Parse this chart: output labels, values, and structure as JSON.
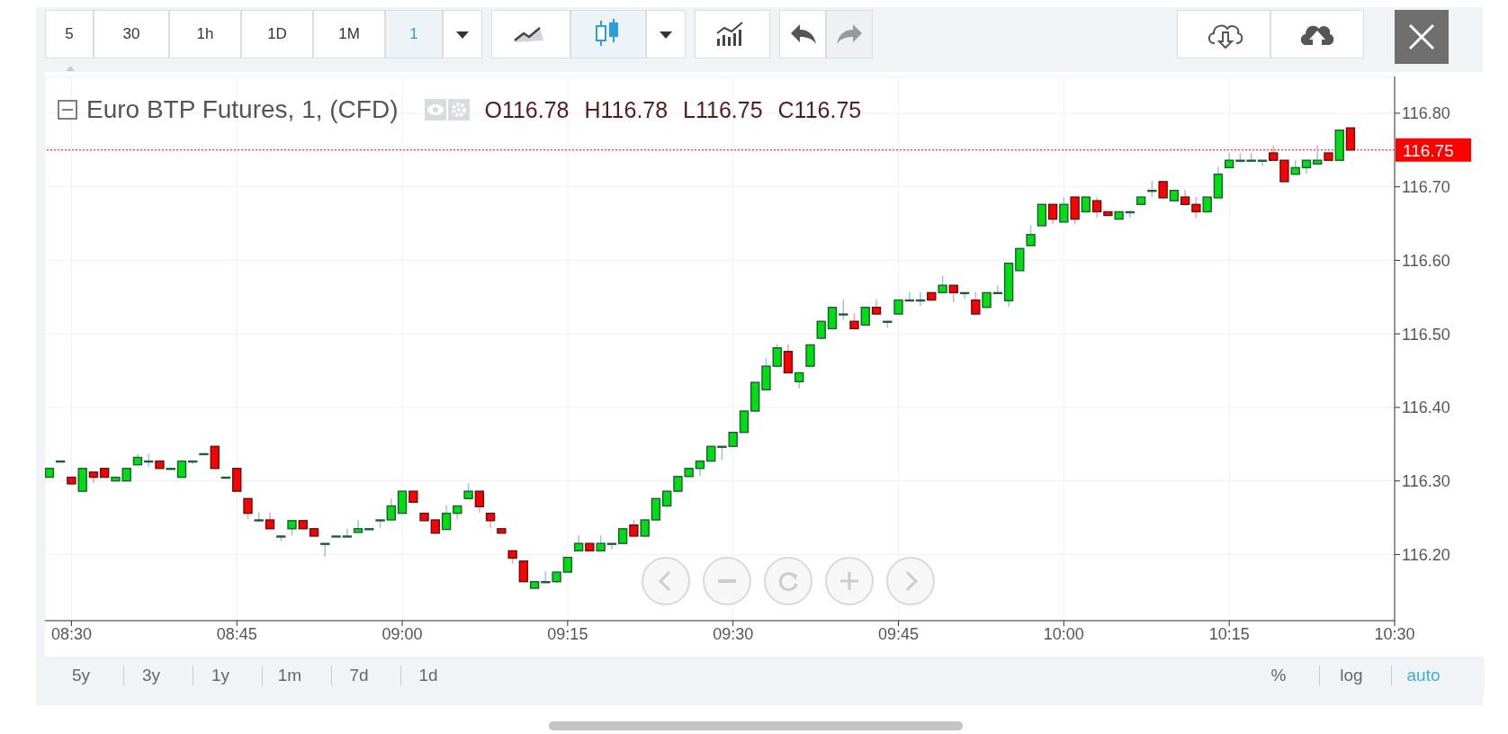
{
  "chart_data": {
    "type": "candlestick",
    "title": "Euro BTP Futures, 1, (CFD)",
    "annotations": [
      "O116.78 H116.78 L116.75 C116.75",
      "5",
      "30",
      "1h",
      "1D",
      "1M",
      "1",
      "5y",
      "3y",
      "1y",
      "1m",
      "7d",
      "1d",
      "%",
      "log",
      "auto"
    ],
    "x": [
      8.4667,
      8.4833,
      8.5,
      8.5167,
      8.5333,
      8.55,
      8.5667,
      8.5833,
      8.6,
      8.6167,
      8.6333,
      8.65,
      8.6667,
      8.6833,
      8.7,
      8.7167,
      8.7333,
      8.75,
      8.7667,
      8.7833,
      8.8,
      8.8167,
      8.8333,
      8.85,
      8.8667,
      8.8833,
      8.9,
      8.9167,
      8.9333,
      8.95,
      8.9667,
      8.9833,
      9.0,
      9.0167,
      9.0333,
      9.05,
      9.0667,
      9.0833,
      9.1,
      9.1167,
      9.1333,
      9.15,
      9.1667,
      9.1833,
      9.2,
      9.2167,
      9.2333,
      9.25,
      9.2667,
      9.2833,
      9.3,
      9.3167,
      9.3333,
      9.35,
      9.3667,
      9.3833,
      9.4,
      9.4167,
      9.4333,
      9.45,
      9.4667,
      9.4833,
      9.5,
      9.5167,
      9.5333,
      9.55,
      9.5667,
      9.5833,
      9.6,
      9.6167,
      9.6333,
      9.65,
      9.6667,
      9.6833,
      9.7,
      9.7167,
      9.7333,
      9.75,
      9.7667,
      9.7833,
      9.8,
      9.8167,
      9.8333,
      9.85,
      9.8667,
      9.8833,
      9.9,
      9.9167,
      9.9333,
      9.95,
      9.9667,
      9.9833,
      10.0,
      10.0167,
      10.0333,
      10.05,
      10.0667,
      10.0833,
      10.1,
      10.1167,
      10.1333,
      10.15,
      10.1667,
      10.1833,
      10.2,
      10.2167,
      10.2333,
      10.25,
      10.2667,
      10.2833,
      10.3,
      10.3167,
      10.3333,
      10.35,
      10.3667,
      10.3833,
      10.4,
      10.4167,
      10.4333
    ],
    "ohlc": [
      [
        116.305,
        116.317,
        116.305,
        116.317
      ],
      [
        116.327,
        116.327,
        116.327,
        116.327
      ],
      [
        116.305,
        116.305,
        116.296,
        116.296
      ],
      [
        116.286,
        116.317,
        116.286,
        116.317
      ],
      [
        116.312,
        116.312,
        116.297,
        116.305
      ],
      [
        116.317,
        116.317,
        116.305,
        116.305
      ],
      [
        116.3,
        116.305,
        116.3,
        116.305
      ],
      [
        116.3,
        116.317,
        116.3,
        116.317
      ],
      [
        116.322,
        116.337,
        116.322,
        116.332
      ],
      [
        116.327,
        116.337,
        116.319,
        116.327
      ],
      [
        116.327,
        116.327,
        116.317,
        116.317
      ],
      [
        116.317,
        116.317,
        116.317,
        116.317
      ],
      [
        116.305,
        116.327,
        116.305,
        116.327
      ],
      [
        116.327,
        116.327,
        116.323,
        116.327
      ],
      [
        116.337,
        116.337,
        116.337,
        116.337
      ],
      [
        116.347,
        116.347,
        116.317,
        116.317
      ],
      [
        116.305,
        116.305,
        116.305,
        116.305
      ],
      [
        116.317,
        116.317,
        116.286,
        116.286
      ],
      [
        116.276,
        116.276,
        116.248,
        116.256
      ],
      [
        116.247,
        116.257,
        116.244,
        116.247
      ],
      [
        116.247,
        116.257,
        116.235,
        116.235
      ],
      [
        116.225,
        116.225,
        116.218,
        116.225
      ],
      [
        116.235,
        116.246,
        116.226,
        116.246
      ],
      [
        116.246,
        116.246,
        116.235,
        116.235
      ],
      [
        116.235,
        116.235,
        116.225,
        116.225
      ],
      [
        116.215,
        116.215,
        116.197,
        116.215
      ],
      [
        116.225,
        116.225,
        116.225,
        116.225
      ],
      [
        116.225,
        116.235,
        116.225,
        116.225
      ],
      [
        116.23,
        116.247,
        116.23,
        116.235
      ],
      [
        116.235,
        116.235,
        116.235,
        116.235
      ],
      [
        116.247,
        116.247,
        116.236,
        116.247
      ],
      [
        116.247,
        116.276,
        116.247,
        116.266
      ],
      [
        116.256,
        116.286,
        116.256,
        116.286
      ],
      [
        116.286,
        116.286,
        116.271,
        116.271
      ],
      [
        116.256,
        116.256,
        116.246,
        116.246
      ],
      [
        116.247,
        116.247,
        116.229,
        116.229
      ],
      [
        116.234,
        116.267,
        116.234,
        116.256
      ],
      [
        116.256,
        116.266,
        116.248,
        116.266
      ],
      [
        116.276,
        116.297,
        116.276,
        116.286
      ],
      [
        116.286,
        116.286,
        116.257,
        116.265
      ],
      [
        116.256,
        116.256,
        116.236,
        116.246
      ],
      [
        116.235,
        116.235,
        116.229,
        116.229
      ],
      [
        116.205,
        116.205,
        116.187,
        116.195
      ],
      [
        116.191,
        116.191,
        116.163,
        116.163
      ],
      [
        116.154,
        116.163,
        116.154,
        116.163
      ],
      [
        116.163,
        116.177,
        116.161,
        116.163
      ],
      [
        116.163,
        116.176,
        116.161,
        116.176
      ],
      [
        116.176,
        116.196,
        116.176,
        116.196
      ],
      [
        116.205,
        116.226,
        116.205,
        116.215
      ],
      [
        116.215,
        116.215,
        116.205,
        116.205
      ],
      [
        116.205,
        116.226,
        116.205,
        116.215
      ],
      [
        116.215,
        116.215,
        116.207,
        116.215
      ],
      [
        116.215,
        116.235,
        116.215,
        116.235
      ],
      [
        116.24,
        116.247,
        116.225,
        116.225
      ],
      [
        116.225,
        116.247,
        116.225,
        116.247
      ],
      [
        116.247,
        116.276,
        116.247,
        116.276
      ],
      [
        116.266,
        116.286,
        116.266,
        116.286
      ],
      [
        116.286,
        116.306,
        116.286,
        116.306
      ],
      [
        116.306,
        116.317,
        116.306,
        116.317
      ],
      [
        116.317,
        116.327,
        116.307,
        116.327
      ],
      [
        116.327,
        116.347,
        116.327,
        116.347
      ],
      [
        116.347,
        116.347,
        116.329,
        116.347
      ],
      [
        116.347,
        116.366,
        116.347,
        116.366
      ],
      [
        116.366,
        116.395,
        116.366,
        116.395
      ],
      [
        116.395,
        116.434,
        116.395,
        116.434
      ],
      [
        116.424,
        116.467,
        116.424,
        116.456
      ],
      [
        116.456,
        116.486,
        116.456,
        116.481
      ],
      [
        116.476,
        116.486,
        116.447,
        116.447
      ],
      [
        116.435,
        116.447,
        116.426,
        116.447
      ],
      [
        116.456,
        116.485,
        116.456,
        116.485
      ],
      [
        116.494,
        116.517,
        116.494,
        116.517
      ],
      [
        116.507,
        116.536,
        116.507,
        116.536
      ],
      [
        116.527,
        116.547,
        116.519,
        116.527
      ],
      [
        116.517,
        116.528,
        116.507,
        116.507
      ],
      [
        116.512,
        116.536,
        116.512,
        116.536
      ],
      [
        116.536,
        116.547,
        116.527,
        116.527
      ],
      [
        116.517,
        116.517,
        116.508,
        116.517
      ],
      [
        116.527,
        116.546,
        116.527,
        116.546
      ],
      [
        116.546,
        116.557,
        116.546,
        116.546
      ],
      [
        116.546,
        116.557,
        116.538,
        116.546
      ],
      [
        116.556,
        116.556,
        116.546,
        116.546
      ],
      [
        116.556,
        116.579,
        116.556,
        116.566
      ],
      [
        116.566,
        116.566,
        116.543,
        116.556
      ],
      [
        116.556,
        116.556,
        116.548,
        116.556
      ],
      [
        116.546,
        116.557,
        116.527,
        116.527
      ],
      [
        116.536,
        116.556,
        116.536,
        116.556
      ],
      [
        116.556,
        116.566,
        116.556,
        116.556
      ],
      [
        116.545,
        116.596,
        116.537,
        116.596
      ],
      [
        116.586,
        116.616,
        116.586,
        116.616
      ],
      [
        116.62,
        116.648,
        116.62,
        116.635
      ],
      [
        116.647,
        116.676,
        116.647,
        116.676
      ],
      [
        116.676,
        116.676,
        116.649,
        116.656
      ],
      [
        116.652,
        116.686,
        116.652,
        116.676
      ],
      [
        116.686,
        116.686,
        116.649,
        116.656
      ],
      [
        116.666,
        116.686,
        116.666,
        116.686
      ],
      [
        116.681,
        116.686,
        116.658,
        116.666
      ],
      [
        116.666,
        116.666,
        116.661,
        116.661
      ],
      [
        116.656,
        116.666,
        116.656,
        116.666
      ],
      [
        116.666,
        116.666,
        116.658,
        116.666
      ],
      [
        116.676,
        116.686,
        116.676,
        116.686
      ],
      [
        116.695,
        116.708,
        116.686,
        116.695
      ],
      [
        116.707,
        116.707,
        116.685,
        116.685
      ],
      [
        116.681,
        116.695,
        116.681,
        116.695
      ],
      [
        116.686,
        116.696,
        116.676,
        116.676
      ],
      [
        116.676,
        116.686,
        116.658,
        116.666
      ],
      [
        116.666,
        116.686,
        116.666,
        116.686
      ],
      [
        116.685,
        116.727,
        116.685,
        116.717
      ],
      [
        116.726,
        116.746,
        116.726,
        116.736
      ],
      [
        116.736,
        116.746,
        116.733,
        116.736
      ],
      [
        116.736,
        116.746,
        116.736,
        116.736
      ],
      [
        116.736,
        116.736,
        116.728,
        116.736
      ],
      [
        116.746,
        116.756,
        116.736,
        116.736
      ],
      [
        116.736,
        116.736,
        116.707,
        116.707
      ],
      [
        116.717,
        116.736,
        116.717,
        116.726
      ],
      [
        116.726,
        116.736,
        116.718,
        116.736
      ],
      [
        116.731,
        116.756,
        116.731,
        116.736
      ],
      [
        116.746,
        116.746,
        116.736,
        116.736
      ],
      [
        116.736,
        116.777,
        116.736,
        116.777
      ],
      [
        116.78,
        116.78,
        116.75,
        116.75
      ]
    ],
    "xlim": [
      8.46,
      10.5
    ],
    "xticks": [
      {
        "value": 8.5,
        "label": "08:30"
      },
      {
        "value": 8.75,
        "label": "08:45"
      },
      {
        "value": 9,
        "label": "09:00"
      },
      {
        "value": 9.25,
        "label": "09:15"
      },
      {
        "value": 9.5,
        "label": "09:30"
      },
      {
        "value": 9.75,
        "label": "09:45"
      },
      {
        "value": 10,
        "label": "10:00"
      },
      {
        "value": 10.25,
        "label": "10:15"
      },
      {
        "value": 10.5,
        "label": "10:30"
      }
    ],
    "ylim": [
      116.11,
      116.85
    ],
    "yticks": [
      {
        "value": 116.2,
        "label": "116.20"
      },
      {
        "value": 116.3,
        "label": "116.30"
      },
      {
        "value": 116.4,
        "label": "116.40"
      },
      {
        "value": 116.5,
        "label": "116.50"
      },
      {
        "value": 116.6,
        "label": "116.60"
      },
      {
        "value": 116.7,
        "label": "116.70"
      },
      {
        "value": 116.8,
        "label": "116.80"
      }
    ],
    "ref_lines": [
      {
        "axis": "y",
        "value": 116.75,
        "label": "116.75",
        "color": "#ff0000",
        "line_style": "dotted"
      }
    ],
    "grid": true
  }
}
